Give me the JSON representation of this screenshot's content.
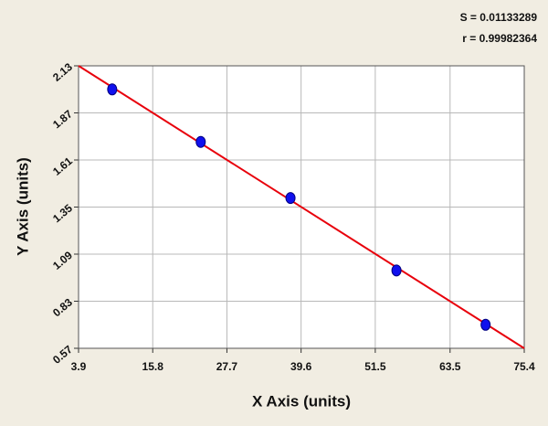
{
  "chart_data": {
    "type": "scatter",
    "annotations": [
      "S = 0.01133289",
      "r = 0.99982364"
    ],
    "x_label": "X Axis (units)",
    "y_label": "Y Axis (units)",
    "xlim": [
      3.9,
      75.4
    ],
    "xticks": [
      3.9,
      15.8,
      27.7,
      39.6,
      51.5,
      63.5,
      75.4
    ],
    "ylim": [
      0.57,
      2.13
    ],
    "yticks": [
      0.57,
      0.83,
      1.09,
      1.35,
      1.61,
      1.87,
      2.13
    ],
    "grid": true,
    "series": [
      {
        "mode": "line",
        "color": "#e8000b",
        "x": [
          3.9,
          75.4
        ],
        "values": [
          2.13,
          0.57
        ]
      },
      {
        "mode": "markers",
        "color": "#1010ee",
        "x": [
          9.3,
          23.5,
          37.9,
          54.9,
          69.2
        ],
        "values": [
          2.0,
          1.71,
          1.4,
          1.0,
          0.7
        ]
      }
    ]
  }
}
